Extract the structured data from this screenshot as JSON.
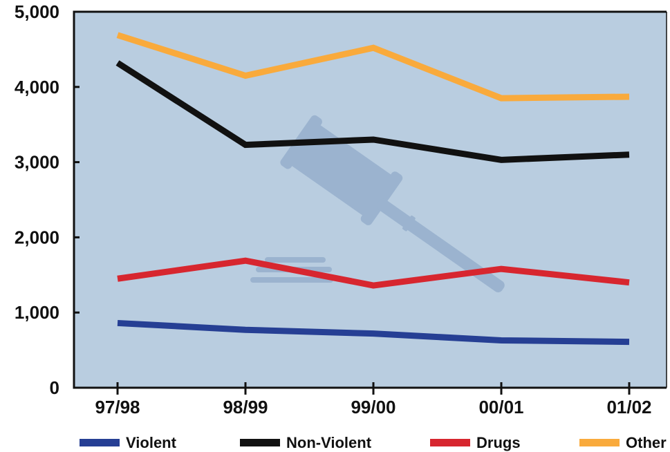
{
  "chart_data": {
    "type": "line",
    "title": "",
    "xlabel": "",
    "ylabel": "",
    "categories": [
      "97/98",
      "98/99",
      "99/00",
      "00/01",
      "01/02"
    ],
    "ylim": [
      0,
      5000
    ],
    "yticks": [
      0,
      1000,
      2000,
      3000,
      4000,
      5000
    ],
    "ytick_labels": [
      "0",
      "1,000",
      "2,000",
      "3,000",
      "4,000",
      "5,000"
    ],
    "grid": false,
    "legend_position": "bottom",
    "background_color": "#b9cde0",
    "watermark": "gavel-icon",
    "series": [
      {
        "name": "Violent",
        "color": "#263f94",
        "values": [
          860,
          770,
          720,
          630,
          610
        ]
      },
      {
        "name": "Non-Violent",
        "color": "#111111",
        "values": [
          4320,
          3230,
          3300,
          3030,
          3100
        ]
      },
      {
        "name": "Drugs",
        "color": "#d7262f",
        "values": [
          1450,
          1690,
          1360,
          1580,
          1400
        ]
      },
      {
        "name": "Other",
        "color": "#f9aa3c",
        "values": [
          4690,
          4150,
          4520,
          3850,
          3870
        ]
      }
    ]
  }
}
